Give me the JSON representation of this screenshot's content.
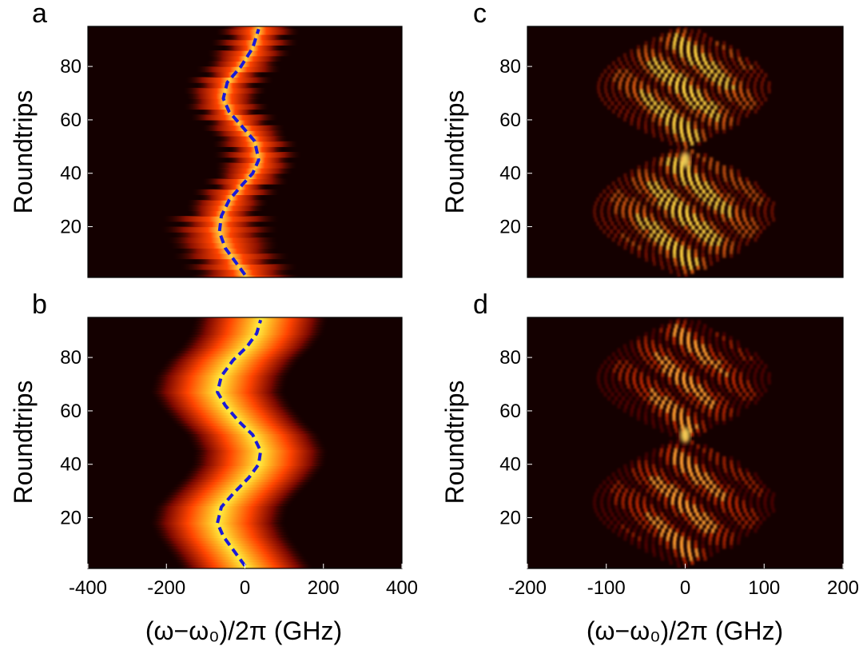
{
  "figure": {
    "panels": [
      {
        "letter": "a",
        "ylabel": "Roundtrips"
      },
      {
        "letter": "b",
        "ylabel": "Roundtrips"
      },
      {
        "letter": "c",
        "ylabel": "Roundtrips"
      },
      {
        "letter": "d",
        "ylabel": "Roundtrips"
      }
    ],
    "xlabel_left": "(ω−ω₀)/2π (GHz)",
    "xlabel_right": "(ω−ω₀)/2π (GHz)"
  },
  "colors": {
    "background": "#140000",
    "hot_low": "#7a0800",
    "hot_mid": "#ff4400",
    "hot_high": "#ffee40",
    "trace": "#1a1ad8"
  },
  "chart_data": [
    {
      "panel": "a",
      "type": "heatmap",
      "title": "",
      "xlabel": "(ω−ω₀)/2π (GHz)",
      "ylabel": "Roundtrips",
      "xlim": [
        -400,
        400
      ],
      "ylim": [
        1,
        95
      ],
      "xticks": [
        -400,
        -200,
        0,
        200,
        400
      ],
      "yticks": [
        20,
        40,
        60,
        80
      ],
      "description_kind": "measured spectral evolution",
      "series": [
        {
          "style": "dashed",
          "x": [
            0,
            -20,
            -50,
            -65,
            -60,
            -40,
            -5,
            20,
            35,
            25,
            -10,
            -40,
            -55,
            -45,
            -10,
            20,
            35
          ],
          "y": [
            2,
            6,
            12,
            18,
            24,
            30,
            36,
            40,
            45,
            52,
            58,
            63,
            68,
            74,
            80,
            87,
            94
          ]
        }
      ]
    },
    {
      "panel": "b",
      "type": "heatmap",
      "title": "",
      "xlabel": "(ω−ω₀)/2π (GHz)",
      "ylabel": "Roundtrips",
      "xlim": [
        -400,
        400
      ],
      "ylim": [
        1,
        95
      ],
      "xticks": [
        -400,
        -200,
        0,
        200,
        400
      ],
      "yticks": [
        20,
        40,
        60,
        80
      ],
      "description_kind": "simulated spectral evolution",
      "series": [
        {
          "style": "dashed",
          "x": [
            0,
            -30,
            -55,
            -70,
            -60,
            -30,
            10,
            35,
            40,
            20,
            -15,
            -50,
            -70,
            -60,
            -30,
            5,
            30,
            40
          ],
          "y": [
            2,
            8,
            13,
            18,
            24,
            29,
            35,
            40,
            45,
            51,
            56,
            62,
            67,
            73,
            79,
            84,
            89,
            94
          ]
        }
      ]
    },
    {
      "panel": "c",
      "type": "heatmap",
      "title": "",
      "xlabel": "(ω−ω₀)/2π (GHz)",
      "ylabel": "Roundtrips",
      "xlim": [
        -200,
        200
      ],
      "ylim": [
        1,
        95
      ],
      "xticks": [
        -200,
        -100,
        0,
        100,
        200
      ],
      "yticks": [
        20,
        40,
        60,
        80
      ],
      "description_kind": "measured interference pattern"
    },
    {
      "panel": "d",
      "type": "heatmap",
      "title": "",
      "xlabel": "(ω−ω₀)/2π (GHz)",
      "ylabel": "Roundtrips",
      "xlim": [
        -200,
        200
      ],
      "ylim": [
        1,
        95
      ],
      "xticks": [
        -200,
        -100,
        0,
        100,
        200
      ],
      "yticks": [
        20,
        40,
        60,
        80
      ],
      "description_kind": "simulated interference pattern"
    }
  ]
}
